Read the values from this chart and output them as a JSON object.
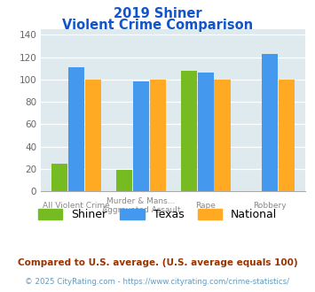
{
  "title_line1": "2019 Shiner",
  "title_line2": "Violent Crime Comparison",
  "cat_labels_top": [
    "",
    "Murder & Mans...",
    "",
    ""
  ],
  "cat_labels_bot": [
    "All Violent Crime",
    "Aggravated Assault",
    "Rape",
    "Robbery"
  ],
  "shiner": [
    25,
    19,
    108,
    0
  ],
  "texas": [
    111,
    98,
    106,
    123
  ],
  "national": [
    100,
    100,
    100,
    100
  ],
  "shiner_color": "#77bb22",
  "texas_color": "#4499ee",
  "national_color": "#ffaa22",
  "ylim": [
    0,
    145
  ],
  "yticks": [
    0,
    20,
    40,
    60,
    80,
    100,
    120,
    140
  ],
  "footnote1": "Compared to U.S. average. (U.S. average equals 100)",
  "footnote2": "© 2025 CityRating.com - https://www.cityrating.com/crime-statistics/",
  "title_color": "#1155cc",
  "footnote1_color": "#993300",
  "footnote2_color": "#6699bb",
  "plot_bg_color": "#deeaee"
}
